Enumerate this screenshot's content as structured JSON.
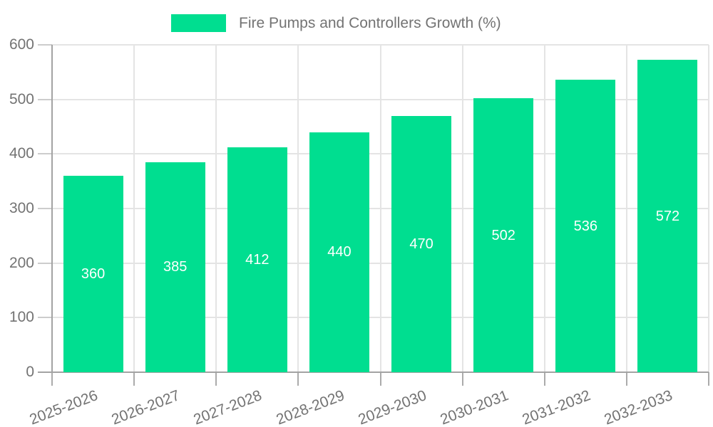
{
  "chart_data": {
    "type": "bar",
    "title": "Fire Pumps and Controllers Growth (%)",
    "categories": [
      "2025-2026",
      "2026-2027",
      "2027-2028",
      "2028-2029",
      "2029-2030",
      "2030-2031",
      "2031-2032",
      "2032-2033"
    ],
    "values": [
      360,
      385,
      412,
      440,
      470,
      502,
      536,
      572
    ],
    "xlabel": "",
    "ylabel": "",
    "ylim": [
      0,
      600
    ],
    "yticks": [
      0,
      100,
      200,
      300,
      400,
      500,
      600
    ],
    "grid": true,
    "legend_position": "top",
    "bar_labels_shown": true,
    "colors": {
      "bar": "#00DE90",
      "bar_label": "#FFFFFF",
      "axis_text": "#737373",
      "axis_line": "#A3A3A3",
      "gridline": "#E4E4E4",
      "y_tick": "#CCCCCC",
      "x_tick": "#ABABAB"
    }
  }
}
